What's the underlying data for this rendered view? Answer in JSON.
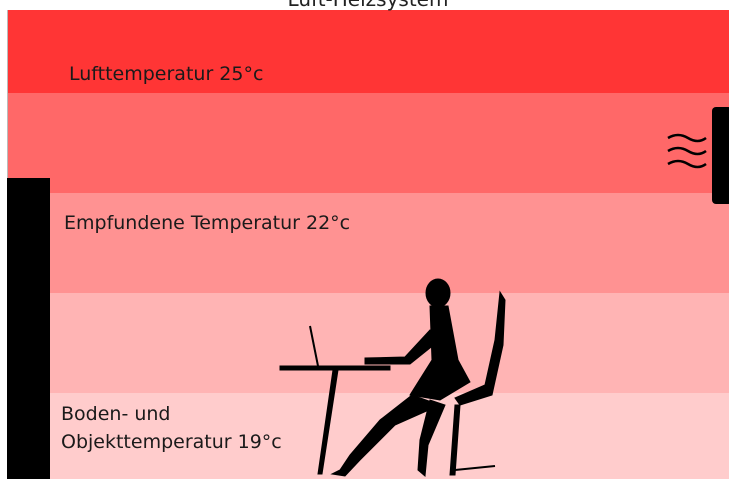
{
  "header": {
    "title": "Luft-Heizsystem"
  },
  "labels": {
    "air": "Lufttemperatur 25°c",
    "felt": "Empfundene Temperatur 22°c",
    "floor": [
      "Boden- und",
      "Objekttemperatur 19°c"
    ]
  }
}
